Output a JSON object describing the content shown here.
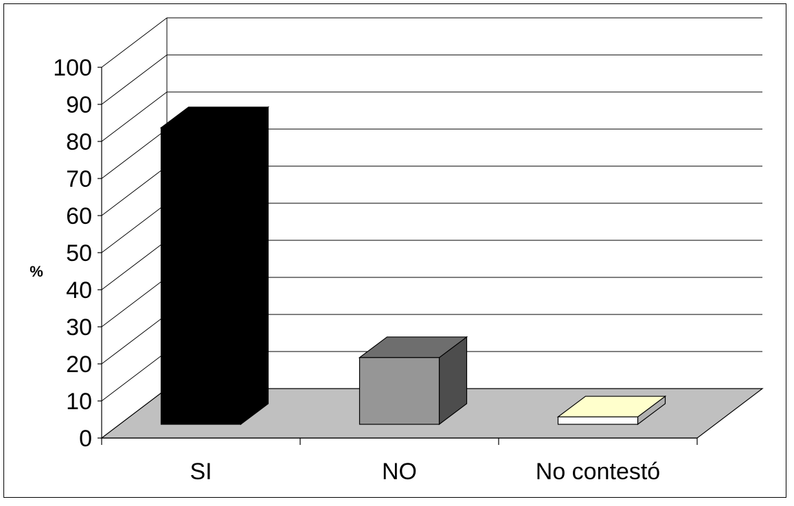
{
  "chart_data": {
    "type": "bar",
    "categories": [
      "SI",
      "NO",
      "No contestó"
    ],
    "values": [
      80,
      18,
      2
    ],
    "ylabel": "%",
    "ylim": [
      0,
      100
    ],
    "ytick_step": 10,
    "ytick_labels": [
      "0",
      "10",
      "20",
      "30",
      "40",
      "50",
      "60",
      "70",
      "80",
      "90",
      "100"
    ],
    "grid": true,
    "style": "3d-column",
    "bar_colors": [
      "#000000",
      "#969696",
      "#ffffff"
    ],
    "bar_side_colors": [
      "#000000",
      "#4d4d4d",
      "#b0b0b0"
    ],
    "bar_top_colors": [
      "#000000",
      "#6e6e6e",
      "#ffffcc"
    ],
    "floor_color": "#c0c0c0"
  }
}
